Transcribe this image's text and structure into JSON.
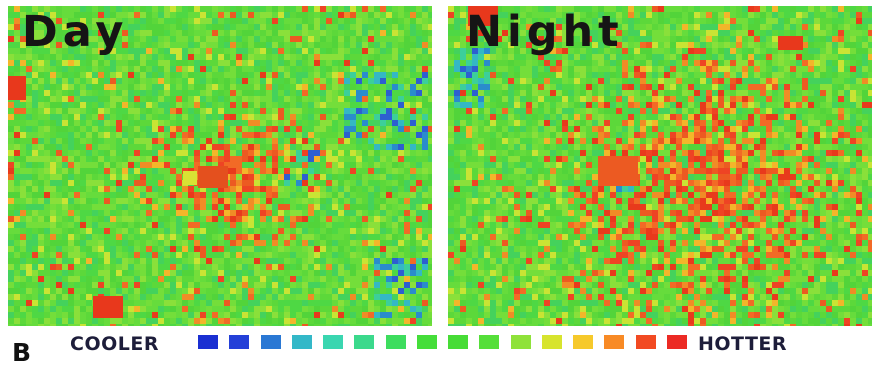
{
  "panels": [
    {
      "label": "Day",
      "image_description_name": "day-thermal-map"
    },
    {
      "label": "Night",
      "image_description_name": "night-thermal-map"
    }
  ],
  "figure_letter": "B",
  "legend": {
    "low_label": "COOLER",
    "high_label": "HOTTER",
    "colors": [
      "#1a2fd2",
      "#2440d8",
      "#2a78d4",
      "#33b8c8",
      "#3ad6b0",
      "#3bd98c",
      "#3ddd5e",
      "#45de3a",
      "#47dc36",
      "#55df3a",
      "#8fe23a",
      "#d7e42e",
      "#f6c92b",
      "#f88a25",
      "#f24a22",
      "#ec2a24"
    ]
  },
  "colors": {
    "base_green": "#5fd93a",
    "hot_red": "#ec3a1c",
    "cool_blue": "#2a62cc"
  }
}
